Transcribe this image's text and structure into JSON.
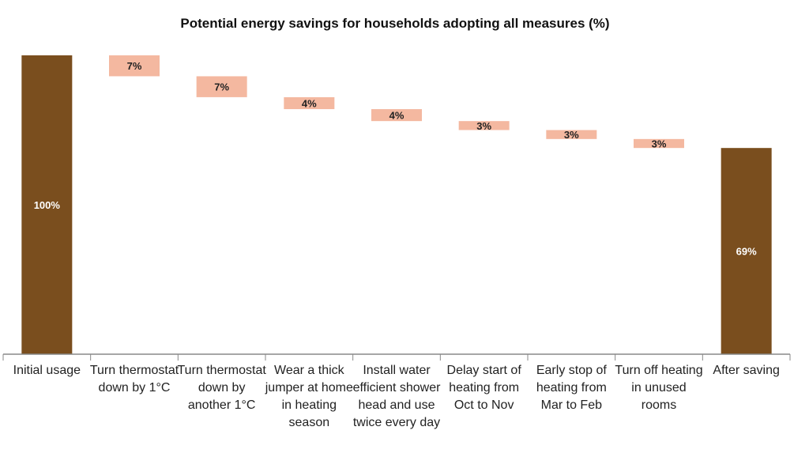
{
  "chart_data": {
    "type": "bar",
    "subtype": "waterfall",
    "title": "Potential energy savings for households adopting all measures (%)",
    "categories": [
      "Initial usage",
      "Turn thermostat down by 1°C",
      "Turn thermostat down by another 1°C",
      "Wear a thick jumper at home in heating season",
      "Install water efficient shower head and use twice every day",
      "Delay start of heating from Oct to Nov",
      "Early stop of heating from Mar to Feb",
      "Turn off heating in unused rooms",
      "After saving"
    ],
    "values": [
      100,
      -7,
      -7,
      -4,
      -4,
      -3,
      -3,
      -3,
      69
    ],
    "data_labels": [
      "100%",
      "7%",
      "7%",
      "4%",
      "4%",
      "3%",
      "3%",
      "3%",
      "69%"
    ],
    "bar_kinds": [
      "total",
      "delta",
      "delta",
      "delta",
      "delta",
      "delta",
      "delta",
      "delta",
      "total"
    ],
    "ylim": [
      0,
      100
    ],
    "grid": false,
    "legend": "none",
    "colors": {
      "total": "#7a4e1e",
      "delta": "#f4b8a0",
      "axis": "#888888",
      "total_label": "#ffffff",
      "delta_label": "#222222"
    }
  }
}
